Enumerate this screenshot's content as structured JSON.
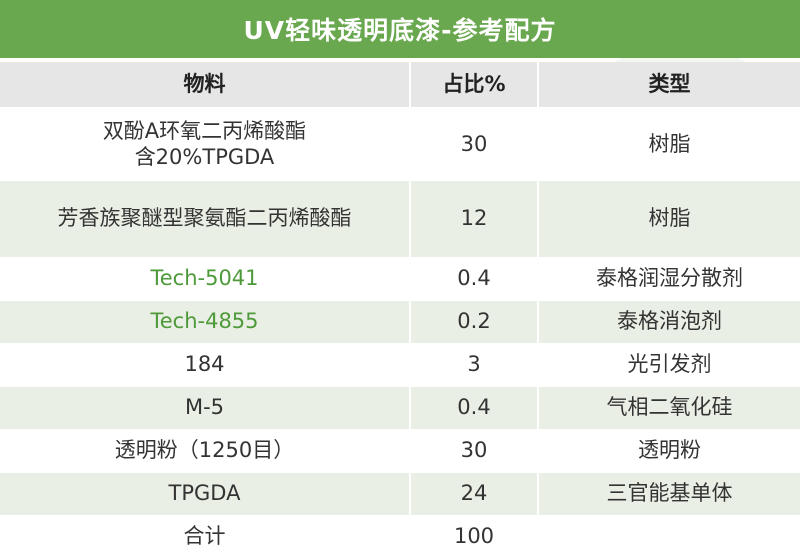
{
  "title": "UV轻味透明底漆-参考配方",
  "columns": [
    "物料",
    "占比%",
    "类型"
  ],
  "rows": [
    {
      "material_line1": "双酚A环氧二丙烯酸酯",
      "material_line2": "含20%TPGDA",
      "ratio": "30",
      "type": "树脂"
    },
    {
      "material": "芳香族聚醚型聚氨酯二丙烯酸酯",
      "ratio": "12",
      "type": "树脂"
    },
    {
      "material": "Tech-5041",
      "ratio": "0.4",
      "type": "泰格润湿分散剂"
    },
    {
      "material": "Tech-4855",
      "ratio": "0.2",
      "type": "泰格消泡剂"
    },
    {
      "material": "184",
      "ratio": "3",
      "type": "光引发剂"
    },
    {
      "material": "M-5",
      "ratio": "0.4",
      "type": "气相二氧化硅"
    },
    {
      "material": "透明粉（1250目）",
      "ratio": "30",
      "type": "透明粉"
    },
    {
      "material": "TPGDA",
      "ratio": "24",
      "type": "三官能基单体"
    },
    {
      "material": "合计",
      "ratio": "100",
      "type": ""
    }
  ],
  "colors": {
    "title_bg": "#6aa84f",
    "header_bg": "#e6e6e6",
    "stripe_bg": "#e9efe4",
    "highlight_text": "#4e9a3a"
  }
}
